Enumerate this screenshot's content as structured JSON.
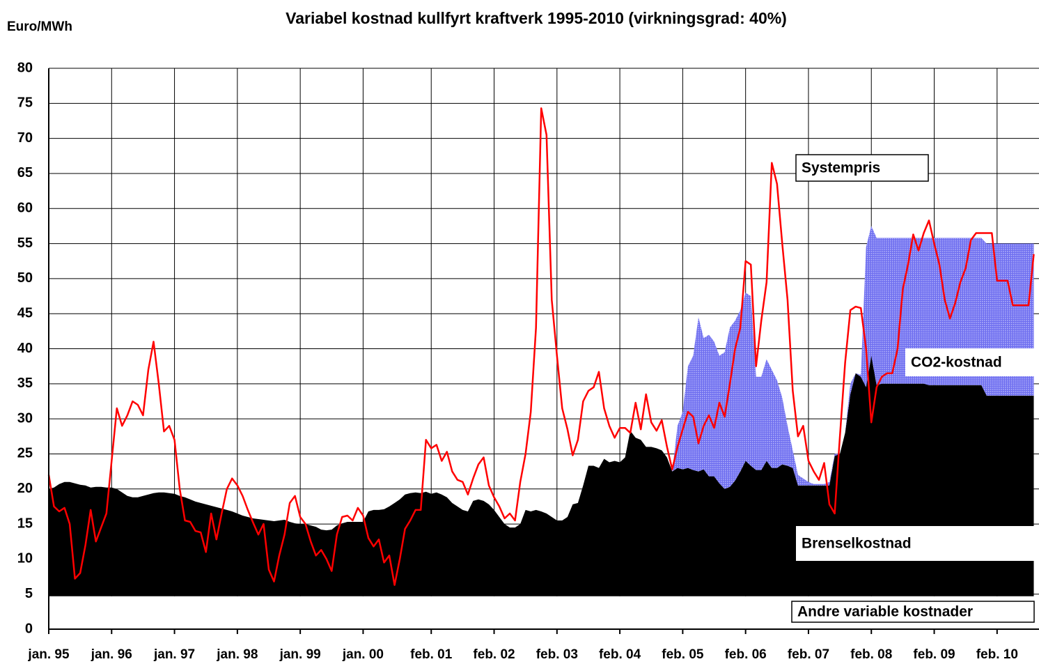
{
  "chart_data": {
    "type": "area",
    "title": "Variabel kostnad kullfyrt kraftverk 1995-2010 (virkningsgrad: 40%)",
    "y_label": "Euro/MWh",
    "stacked": true,
    "grid": true,
    "xlim": [
      "1995-01",
      "2010-10"
    ],
    "ylim": [
      0,
      80
    ],
    "yticks": [
      0,
      5,
      10,
      15,
      20,
      25,
      30,
      35,
      40,
      45,
      50,
      55,
      60,
      65,
      70,
      75,
      80
    ],
    "xticks": [
      {
        "value": "1995-01",
        "label": "jan. 95"
      },
      {
        "value": "1996-01",
        "label": "jan. 96"
      },
      {
        "value": "1997-01",
        "label": "jan. 97"
      },
      {
        "value": "1998-01",
        "label": "jan. 98"
      },
      {
        "value": "1999-01",
        "label": "jan. 99"
      },
      {
        "value": "2000-01",
        "label": "jan. 00"
      },
      {
        "value": "2001-02",
        "label": "feb. 01"
      },
      {
        "value": "2002-02",
        "label": "feb. 02"
      },
      {
        "value": "2003-02",
        "label": "feb. 03"
      },
      {
        "value": "2004-02",
        "label": "feb. 04"
      },
      {
        "value": "2005-02",
        "label": "feb. 05"
      },
      {
        "value": "2006-02",
        "label": "feb. 06"
      },
      {
        "value": "2007-02",
        "label": "feb. 07"
      },
      {
        "value": "2008-02",
        "label": "feb. 08"
      },
      {
        "value": "2009-02",
        "label": "feb. 09"
      },
      {
        "value": "2010-02",
        "label": "feb. 10"
      }
    ],
    "x": [
      "1995-01",
      "1995-02",
      "1995-03",
      "1995-04",
      "1995-05",
      "1995-06",
      "1995-07",
      "1995-08",
      "1995-09",
      "1995-10",
      "1995-11",
      "1995-12",
      "1996-01",
      "1996-02",
      "1996-03",
      "1996-04",
      "1996-05",
      "1996-06",
      "1996-07",
      "1996-08",
      "1996-09",
      "1996-10",
      "1996-11",
      "1996-12",
      "1997-01",
      "1997-02",
      "1997-03",
      "1997-04",
      "1997-05",
      "1997-06",
      "1997-07",
      "1997-08",
      "1997-09",
      "1997-10",
      "1997-11",
      "1997-12",
      "1998-01",
      "1998-02",
      "1998-03",
      "1998-04",
      "1998-05",
      "1998-06",
      "1998-07",
      "1998-08",
      "1998-09",
      "1998-10",
      "1998-11",
      "1998-12",
      "1999-01",
      "1999-02",
      "1999-03",
      "1999-04",
      "1999-05",
      "1999-06",
      "1999-07",
      "1999-08",
      "1999-09",
      "1999-10",
      "1999-11",
      "1999-12",
      "2000-01",
      "2000-02",
      "2000-03",
      "2000-04",
      "2000-05",
      "2000-06",
      "2000-07",
      "2000-08",
      "2000-09",
      "2000-10",
      "2000-11",
      "2000-12",
      "2001-01",
      "2001-02",
      "2001-03",
      "2001-04",
      "2001-05",
      "2001-06",
      "2001-07",
      "2001-08",
      "2001-09",
      "2001-10",
      "2001-11",
      "2001-12",
      "2002-01",
      "2002-02",
      "2002-03",
      "2002-04",
      "2002-05",
      "2002-06",
      "2002-07",
      "2002-08",
      "2002-09",
      "2002-10",
      "2002-11",
      "2002-12",
      "2003-01",
      "2003-02",
      "2003-03",
      "2003-04",
      "2003-05",
      "2003-06",
      "2003-07",
      "2003-08",
      "2003-09",
      "2003-10",
      "2003-11",
      "2003-12",
      "2004-01",
      "2004-02",
      "2004-03",
      "2004-04",
      "2004-05",
      "2004-06",
      "2004-07",
      "2004-08",
      "2004-09",
      "2004-10",
      "2004-11",
      "2004-12",
      "2005-01",
      "2005-02",
      "2005-03",
      "2005-04",
      "2005-05",
      "2005-06",
      "2005-07",
      "2005-08",
      "2005-09",
      "2005-10",
      "2005-11",
      "2005-12",
      "2006-01",
      "2006-02",
      "2006-03",
      "2006-04",
      "2006-05",
      "2006-06",
      "2006-07",
      "2006-08",
      "2006-09",
      "2006-10",
      "2006-11",
      "2006-12",
      "2007-01",
      "2007-02",
      "2007-03",
      "2007-04",
      "2007-05",
      "2007-06",
      "2007-07",
      "2007-08",
      "2007-09",
      "2007-10",
      "2007-11",
      "2007-12",
      "2008-01",
      "2008-02",
      "2008-03",
      "2008-04",
      "2008-05",
      "2008-06",
      "2008-07",
      "2008-08",
      "2008-09",
      "2008-10",
      "2008-11",
      "2008-12",
      "2009-01",
      "2009-02",
      "2009-03",
      "2009-04",
      "2009-05",
      "2009-06",
      "2009-07",
      "2009-08",
      "2009-09",
      "2009-10",
      "2009-11",
      "2009-12",
      "2010-01",
      "2010-02",
      "2010-03",
      "2010-04",
      "2010-05",
      "2010-06",
      "2010-07",
      "2010-08",
      "2010-09"
    ],
    "series": [
      {
        "name": "Andre variable kostnader",
        "kind": "area",
        "color": "#ffffff",
        "values": [
          4.7,
          4.7,
          4.7,
          4.7,
          4.7,
          4.7,
          4.7,
          4.7,
          4.7,
          4.7,
          4.7,
          4.7,
          4.7,
          4.7,
          4.7,
          4.7,
          4.7,
          4.7,
          4.7,
          4.7,
          4.7,
          4.7,
          4.7,
          4.7,
          4.7,
          4.7,
          4.7,
          4.7,
          4.7,
          4.7,
          4.7,
          4.7,
          4.7,
          4.7,
          4.7,
          4.7,
          4.7,
          4.7,
          4.7,
          4.7,
          4.7,
          4.7,
          4.7,
          4.7,
          4.7,
          4.7,
          4.7,
          4.7,
          4.7,
          4.7,
          4.7,
          4.7,
          4.7,
          4.7,
          4.7,
          4.7,
          4.7,
          4.7,
          4.7,
          4.7,
          4.7,
          4.7,
          4.7,
          4.7,
          4.7,
          4.7,
          4.7,
          4.7,
          4.7,
          4.7,
          4.7,
          4.7,
          4.7,
          4.7,
          4.7,
          4.7,
          4.7,
          4.7,
          4.7,
          4.7,
          4.7,
          4.7,
          4.7,
          4.7,
          4.7,
          4.7,
          4.7,
          4.7,
          4.7,
          4.7,
          4.7,
          4.7,
          4.7,
          4.7,
          4.7,
          4.7,
          4.7,
          4.7,
          4.7,
          4.7,
          4.7,
          4.7,
          4.7,
          4.7,
          4.7,
          4.7,
          4.7,
          4.7,
          4.7,
          4.7,
          4.7,
          4.7,
          4.7,
          4.7,
          4.7,
          4.7,
          4.7,
          4.7,
          4.7,
          4.7,
          4.7,
          4.7,
          4.7,
          4.7,
          4.7,
          4.7,
          4.7,
          4.7,
          4.7,
          4.7,
          4.7,
          4.7,
          4.7,
          4.7,
          4.7,
          4.7,
          4.7,
          4.7,
          4.7,
          4.7,
          4.7,
          4.7,
          4.7,
          4.7,
          4.7,
          4.7,
          4.7,
          4.7,
          4.7,
          4.7,
          4.7,
          4.7,
          4.7,
          4.7,
          4.7,
          4.7,
          4.7,
          4.7,
          4.7,
          4.7,
          4.7,
          4.7,
          4.7,
          4.7,
          4.7,
          4.7,
          4.7,
          4.7,
          4.7,
          4.7,
          4.7,
          4.7,
          4.7,
          4.7,
          4.7,
          4.7,
          4.7,
          4.7,
          4.7,
          4.7,
          4.7,
          4.7,
          4.7,
          4.7,
          4.7,
          4.7,
          4.7,
          4.7,
          4.7
        ]
      },
      {
        "name": "Brenselkostnad",
        "kind": "area",
        "color": "#000000",
        "values": [
          15.3,
          15.5,
          16,
          16.3,
          16.3,
          16.1,
          15.9,
          15.8,
          15.5,
          15.6,
          15.6,
          15.5,
          15.5,
          15.3,
          14.8,
          14.3,
          14.1,
          14.1,
          14.3,
          14.5,
          14.7,
          14.8,
          14.8,
          14.7,
          14.6,
          14.3,
          14.1,
          13.8,
          13.5,
          13.3,
          13.1,
          12.9,
          12.7,
          12.5,
          12.3,
          12.1,
          11.8,
          11.5,
          11.3,
          11.1,
          11,
          10.9,
          10.8,
          10.7,
          10.8,
          10.9,
          10.6,
          10.4,
          10.3,
          10.3,
          10.1,
          9.9,
          9.5,
          9.4,
          9.5,
          10.1,
          10.4,
          10.6,
          10.6,
          10.6,
          10.6,
          12.1,
          12.3,
          12.3,
          12.4,
          12.8,
          13.3,
          13.8,
          14.5,
          14.7,
          14.8,
          14.7,
          14.9,
          14.6,
          14.8,
          14.5,
          14.1,
          13.3,
          12.8,
          12.3,
          12.1,
          13.6,
          13.8,
          13.6,
          13.1,
          12.3,
          11.3,
          10.3,
          9.8,
          9.8,
          10.3,
          12.3,
          12.1,
          12.3,
          12.1,
          11.8,
          11.3,
          10.8,
          10.8,
          11.3,
          13.1,
          13.3,
          15.8,
          18.6,
          18.6,
          18.3,
          19.6,
          19.1,
          19.3,
          19.1,
          19.8,
          23.6,
          22.6,
          22.3,
          21.3,
          21.3,
          21.1,
          20.8,
          19.8,
          17.8,
          18.3,
          18.1,
          18.3,
          18,
          17.8,
          18.1,
          17.1,
          17.1,
          16.1,
          15.3,
          15.6,
          16.5,
          17.8,
          19.3,
          18.6,
          18,
          18,
          19.3,
          18.3,
          18.3,
          18.8,
          18.6,
          18.3,
          15.8,
          15.8,
          15.8,
          15.8,
          15.8,
          15.8,
          15.8,
          20,
          20.3,
          23.3,
          28.8,
          31.8,
          31.3,
          29.8,
          34.3,
          30.1,
          30.3,
          30.3,
          30.3,
          30.3,
          30.3,
          30.3,
          30.3,
          30.3,
          30.3,
          30.1,
          30.1,
          30.1,
          30.1,
          30.1,
          30.1,
          30.1,
          30.1,
          30.1,
          30.1,
          30.1,
          28.6,
          28.6,
          28.6,
          28.6,
          28.6,
          28.6,
          28.6,
          28.6,
          28.6,
          28.6
        ]
      },
      {
        "name": "CO2-kostnad",
        "kind": "area",
        "color": "#8a8af2",
        "values": [
          0,
          0,
          0,
          0,
          0,
          0,
          0,
          0,
          0,
          0,
          0,
          0,
          0,
          0,
          0,
          0,
          0,
          0,
          0,
          0,
          0,
          0,
          0,
          0,
          0,
          0,
          0,
          0,
          0,
          0,
          0,
          0,
          0,
          0,
          0,
          0,
          0,
          0,
          0,
          0,
          0,
          0,
          0,
          0,
          0,
          0,
          0,
          0,
          0,
          0,
          0,
          0,
          0,
          0,
          0,
          0,
          0,
          0,
          0,
          0,
          0,
          0,
          0,
          0,
          0,
          0,
          0,
          0,
          0,
          0,
          0,
          0,
          0,
          0,
          0,
          0,
          0,
          0,
          0,
          0,
          0,
          0,
          0,
          0,
          0,
          0,
          0,
          0,
          0,
          0,
          0,
          0,
          0,
          0,
          0,
          0,
          0,
          0,
          0,
          0,
          0,
          0,
          0,
          0,
          0,
          0,
          0,
          0,
          0,
          0,
          0,
          0,
          0,
          0,
          0,
          0,
          0,
          0,
          0,
          0,
          6,
          8.2,
          14.5,
          16.3,
          22,
          18.7,
          20.2,
          19.2,
          18.2,
          19.5,
          22.7,
          22.8,
          23,
          24,
          24.2,
          13.3,
          13.3,
          14.5,
          14,
          12.5,
          9.5,
          5.7,
          2.5,
          1.5,
          1,
          0.5,
          0.2,
          0.2,
          0.2,
          0.5,
          0.3,
          0,
          0,
          1.5,
          0,
          0.3,
          20,
          18.5,
          21,
          20.8,
          20.8,
          20.8,
          20.8,
          20.8,
          20.8,
          20.8,
          20.8,
          20.8,
          21,
          21,
          21,
          21,
          21,
          21,
          21,
          21,
          21,
          21,
          21,
          21.7,
          21.7,
          21.7,
          21.7,
          21.7,
          21.7,
          21.7,
          21.7,
          21.7,
          21.7
        ]
      },
      {
        "name": "Systempris",
        "kind": "line",
        "color": "#ff0000",
        "values": [
          22,
          17.5,
          16.8,
          17.3,
          15,
          7.2,
          8,
          12,
          17,
          12.5,
          14.5,
          16.5,
          24,
          31.5,
          29,
          30.5,
          32.5,
          32,
          30.5,
          37,
          41,
          35,
          28.2,
          29,
          27,
          20,
          15.5,
          15.3,
          14,
          13.8,
          11,
          16.5,
          12.8,
          16.5,
          20,
          21.5,
          20.5,
          19,
          17,
          15.2,
          13.5,
          15,
          8.5,
          6.8,
          10.5,
          13.5,
          18,
          19,
          16,
          15,
          12.5,
          10.5,
          11.3,
          10,
          8.3,
          13.5,
          16,
          16.2,
          15.5,
          17.3,
          16.2,
          13,
          11.8,
          12.8,
          9.5,
          10.5,
          6.3,
          10,
          14.3,
          15.5,
          17,
          17,
          27,
          25.8,
          26.3,
          24,
          25.3,
          22.5,
          21.3,
          21,
          19.2,
          21.5,
          23.5,
          24.5,
          20.5,
          18.8,
          17.5,
          15.8,
          16.5,
          15.5,
          21,
          25,
          31,
          43,
          74.3,
          70.5,
          47,
          39,
          31.5,
          28.5,
          24.8,
          27,
          32.5,
          34,
          34.5,
          36.7,
          31.5,
          29,
          27.3,
          28.7,
          28.7,
          28,
          32.3,
          28.5,
          33.5,
          29.5,
          28.3,
          29.8,
          26,
          22.8,
          26,
          28.5,
          31,
          30.3,
          26.5,
          29,
          30.5,
          28.7,
          32.3,
          30.3,
          35,
          40,
          43,
          52.5,
          52,
          37.5,
          44,
          49.5,
          66.5,
          63.5,
          55,
          47,
          34,
          27.5,
          29,
          24,
          22.5,
          21.3,
          23.7,
          17.8,
          16.5,
          27.5,
          38,
          45.5,
          46,
          45.8,
          40,
          29.5,
          34.5,
          36,
          36.5,
          36.5,
          40,
          48.5,
          52,
          56.3,
          54,
          56.5,
          58.3,
          55,
          52,
          47,
          44.3,
          46.5,
          49.5,
          51.5,
          55.5,
          56.5,
          56.5,
          56.5,
          56.5,
          49.7,
          49.7,
          49.7,
          46.2,
          46.2,
          46.2,
          46.2,
          53.5
        ]
      }
    ]
  }
}
